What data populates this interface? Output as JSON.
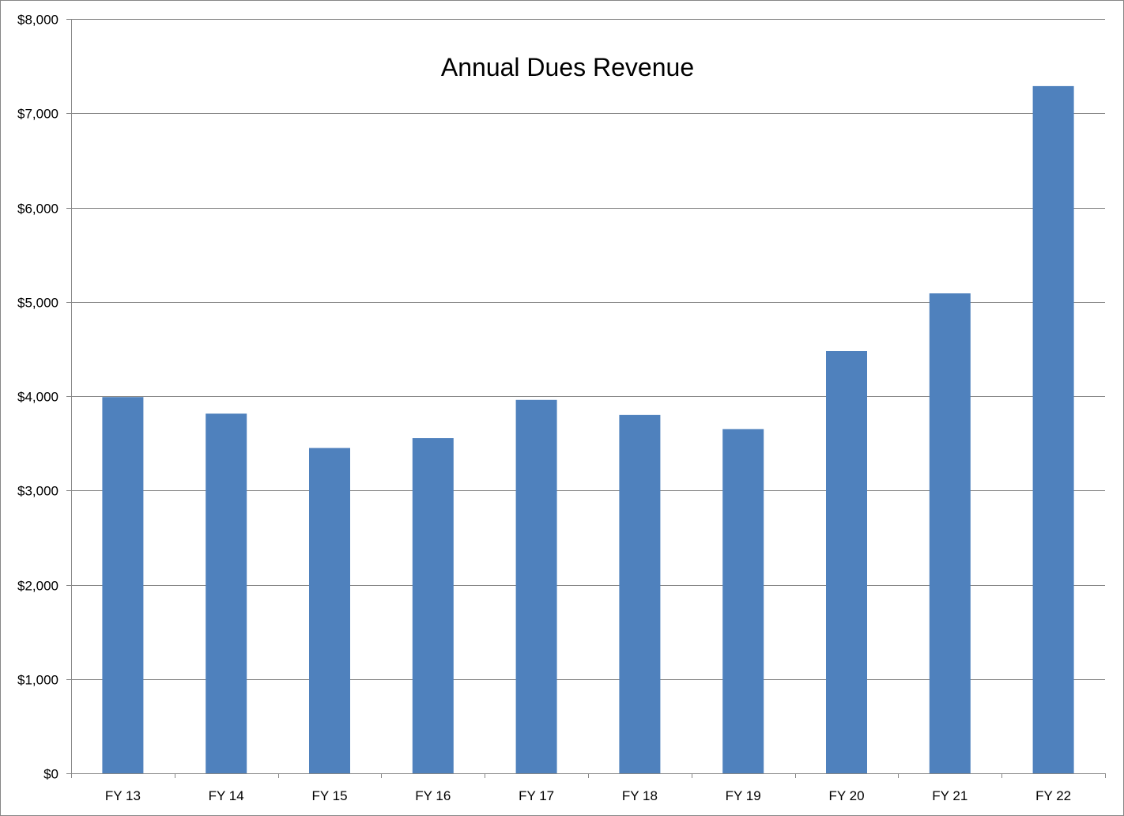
{
  "chart_data": {
    "type": "bar",
    "title": "Annual Dues Revenue",
    "xlabel": "",
    "ylabel": "",
    "categories": [
      "FY 13",
      "FY 14",
      "FY 15",
      "FY 16",
      "FY 17",
      "FY 18",
      "FY 19",
      "FY 20",
      "FY 21",
      "FY 22"
    ],
    "values": [
      3990,
      3815,
      3450,
      3555,
      3960,
      3800,
      3650,
      4478,
      5090,
      7288
    ],
    "ylim": [
      0,
      8000
    ],
    "yticks": [
      0,
      1000,
      2000,
      3000,
      4000,
      5000,
      6000,
      7000,
      8000
    ],
    "ytick_labels": [
      "$0",
      "$1,000",
      "$2,000",
      "$3,000",
      "$4,000",
      "$5,000",
      "$6,000",
      "$7,000",
      "$8,000"
    ],
    "grid": true,
    "legend": "none",
    "bar_color": "#4F81BD",
    "grid_color": "#868686"
  }
}
